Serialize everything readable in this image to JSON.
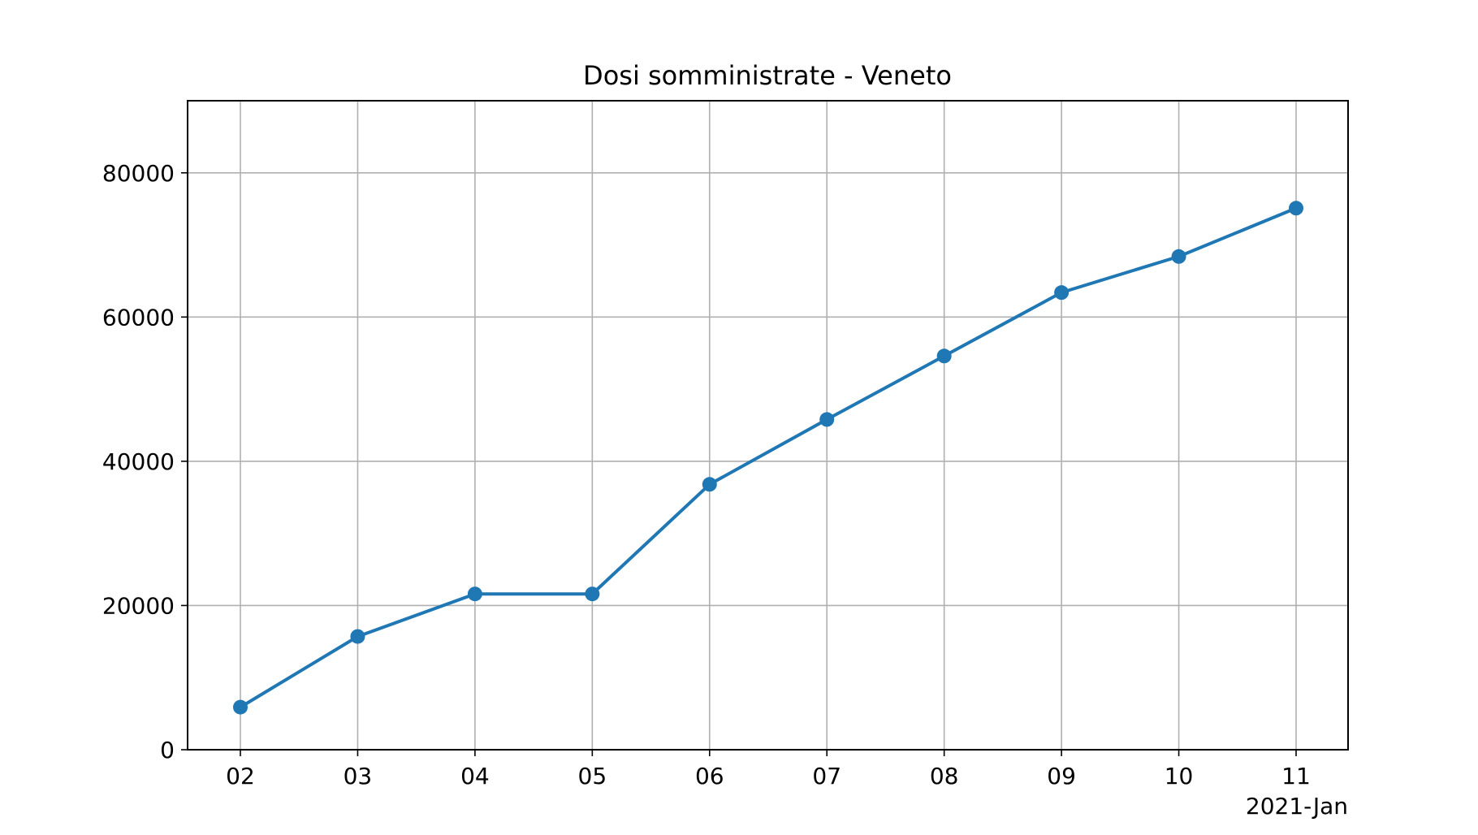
{
  "chart_data": {
    "type": "line",
    "title": "Dosi somministrate - Veneto",
    "xlabel": "",
    "ylabel": "",
    "x_offset_label": "2021-Jan",
    "x": [
      "02",
      "03",
      "04",
      "05",
      "06",
      "07",
      "08",
      "09",
      "10",
      "11"
    ],
    "x_dates": [
      "2021-01-02",
      "2021-01-03",
      "2021-01-04",
      "2021-01-05",
      "2021-01-06",
      "2021-01-07",
      "2021-01-08",
      "2021-01-09",
      "2021-01-10",
      "2021-01-11"
    ],
    "series": [
      {
        "values": [
          5900,
          15700,
          21600,
          21600,
          36800,
          45800,
          54600,
          63400,
          68400,
          75100
        ],
        "color": "#1f77b4",
        "marker": "circle"
      }
    ],
    "yticks": [
      "0",
      "20000",
      "40000",
      "60000",
      "80000"
    ],
    "ylim": [
      0,
      90000
    ],
    "grid": true,
    "legend": "none"
  }
}
